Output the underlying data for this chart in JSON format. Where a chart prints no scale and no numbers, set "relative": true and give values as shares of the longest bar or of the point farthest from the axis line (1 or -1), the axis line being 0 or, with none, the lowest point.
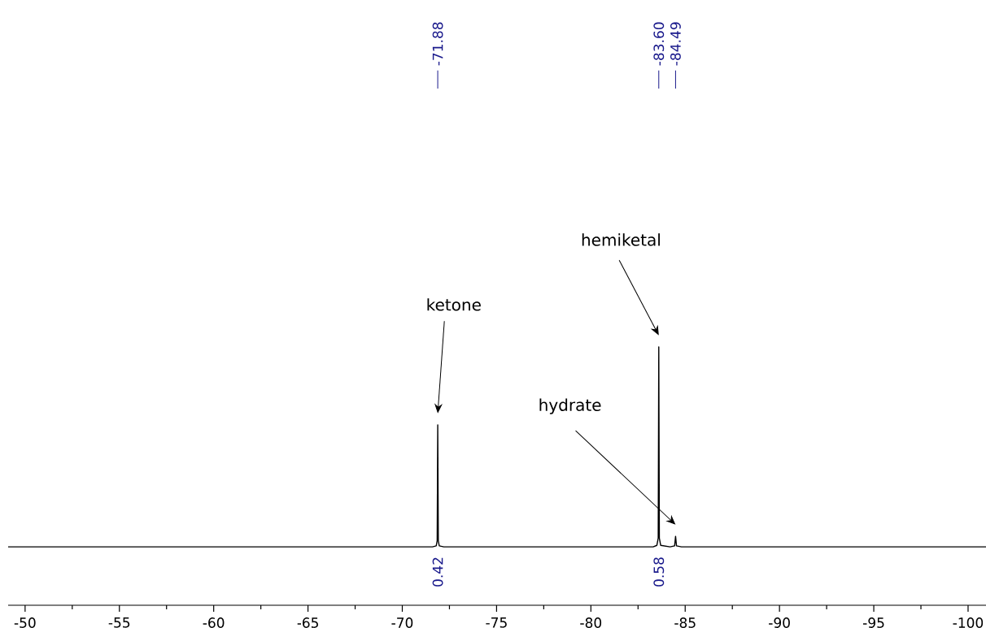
{
  "chart_data": {
    "type": "line",
    "relative": true,
    "x": [
      -49.1,
      -71.6,
      -71.8,
      -71.85,
      -71.88,
      -71.91,
      -71.96,
      -72.2,
      -83.3,
      -83.5,
      -83.57,
      -83.6,
      -83.63,
      -83.7,
      -84.2,
      -84.44,
      -84.49,
      -84.54,
      -84.8,
      -100.95
    ],
    "series": [
      {
        "color": "#000000",
        "values": [
          0.226,
          0.226,
          0.23,
          0.25,
          0.698,
          0.25,
          0.23,
          0.226,
          0.226,
          0.232,
          0.26,
          1,
          0.26,
          0.232,
          0.226,
          0.23,
          0.267,
          0.23,
          0.226,
          0.226
        ]
      }
    ],
    "xlim": [
      -49.1,
      -100.95
    ],
    "xticks": [
      -50,
      -55,
      -60,
      -65,
      -70,
      -75,
      -80,
      -85,
      -90,
      -95,
      -100
    ],
    "annotations": [
      {
        "text": "-71.88",
        "x": -71.88
      },
      {
        "text": "-83.60",
        "x": -83.6
      },
      {
        "text": "-84.49",
        "x": -84.49
      },
      {
        "text": "0.42",
        "x": -71.88,
        "y": 0.226
      },
      {
        "text": "0.58",
        "x": -83.6,
        "y": 0.226
      },
      {
        "text": "ketone",
        "x": -71.88
      },
      "hemiketal",
      "hydrate"
    ],
    "grid": false,
    "marker": "none",
    "line_style": "solid"
  }
}
